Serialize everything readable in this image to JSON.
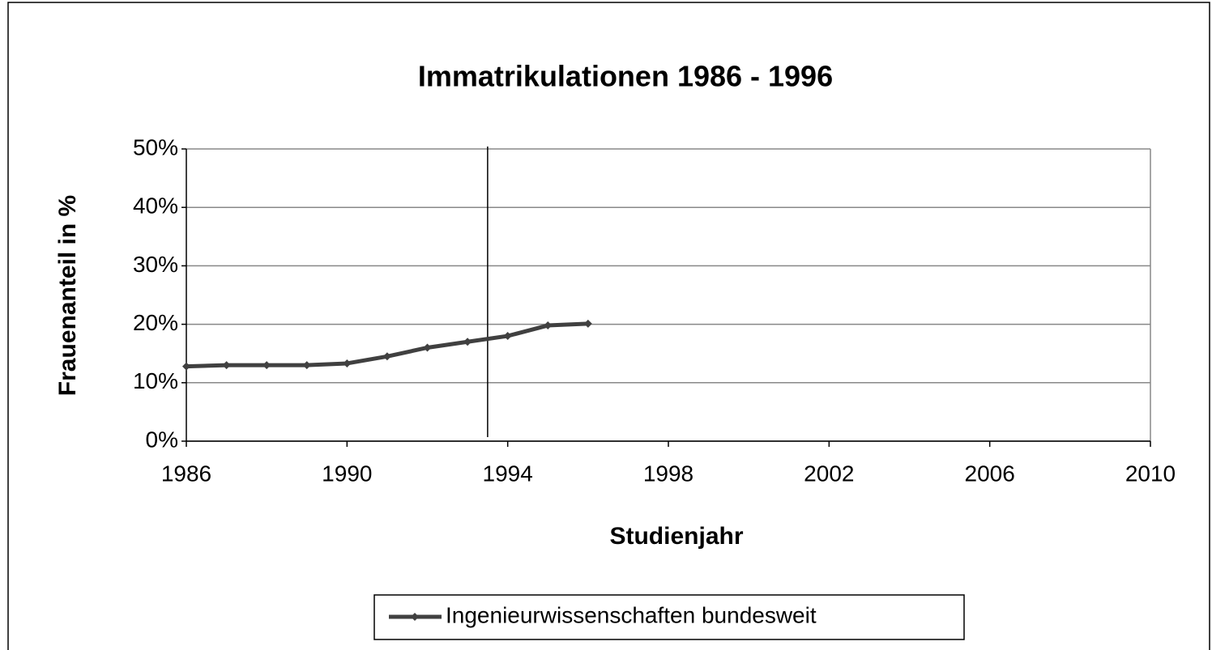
{
  "chart_data": {
    "type": "line",
    "title": "Immatrikulationen 1986 - 1996",
    "x_label": "Studienjahr",
    "y_label": "Frauenanteil in %",
    "x": [
      1986,
      1987,
      1988,
      1989,
      1990,
      1991,
      1992,
      1993,
      1994,
      1995,
      1996
    ],
    "series": [
      {
        "name": "Ingenieurwissenschaften bundesweit",
        "color": "#404040",
        "values": [
          12.8,
          13.0,
          13.0,
          13.0,
          13.3,
          14.5,
          16.0,
          17.0,
          18.0,
          19.8,
          20.1
        ]
      }
    ],
    "xlim": [
      1986,
      2010
    ],
    "xticks": [
      1986,
      1990,
      1994,
      1998,
      2002,
      2006,
      2010
    ],
    "ylim": [
      0,
      50
    ],
    "yticks": [
      {
        "value": 0,
        "label": "0%"
      },
      {
        "value": 10,
        "label": "10%"
      },
      {
        "value": 20,
        "label": "20%"
      },
      {
        "value": 30,
        "label": "30%"
      },
      {
        "value": 40,
        "label": "40%"
      },
      {
        "value": 50,
        "label": "50%"
      }
    ],
    "marker_x": 1993.5,
    "grid": true,
    "legend": "bottom"
  }
}
